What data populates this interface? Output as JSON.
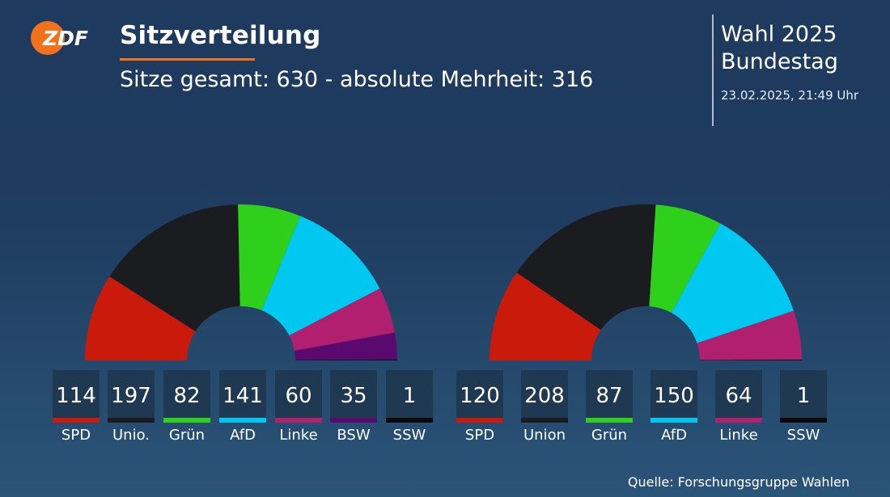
{
  "header": {
    "title": "Sitzverteilung",
    "subtitle": "Sitze gesamt: 630 - absolute Mehrheit: 316",
    "election_line1": "Wahl 2025",
    "election_line2": "Bundestag",
    "timestamp": "23.02.2025, 21:49 Uhr"
  },
  "logo": {
    "text": "ZDF",
    "icon": "zdf-logo",
    "color": "#f2711c"
  },
  "source": "Quelle: Forschungsgruppe Wahlen",
  "chart_data": [
    {
      "type": "pie",
      "subtype": "parliament-half-donut",
      "categories": [
        "SPD",
        "Unio.",
        "Grün",
        "AfD",
        "Linke",
        "BSW",
        "SSW"
      ],
      "values": [
        114,
        197,
        82,
        141,
        60,
        35,
        1
      ],
      "colors": [
        "#c91a0b",
        "#1b1c20",
        "#2ed01b",
        "#00c8f0",
        "#b1206e",
        "#5a0a6e",
        "#0a0a0a"
      ]
    },
    {
      "type": "pie",
      "subtype": "parliament-half-donut",
      "categories": [
        "SPD",
        "Union",
        "Grün",
        "AfD",
        "Linke",
        "SSW"
      ],
      "values": [
        120,
        208,
        87,
        150,
        64,
        1
      ],
      "colors": [
        "#c91a0b",
        "#1b1c20",
        "#2ed01b",
        "#00c8f0",
        "#b1206e",
        "#0a0a0a"
      ]
    }
  ]
}
